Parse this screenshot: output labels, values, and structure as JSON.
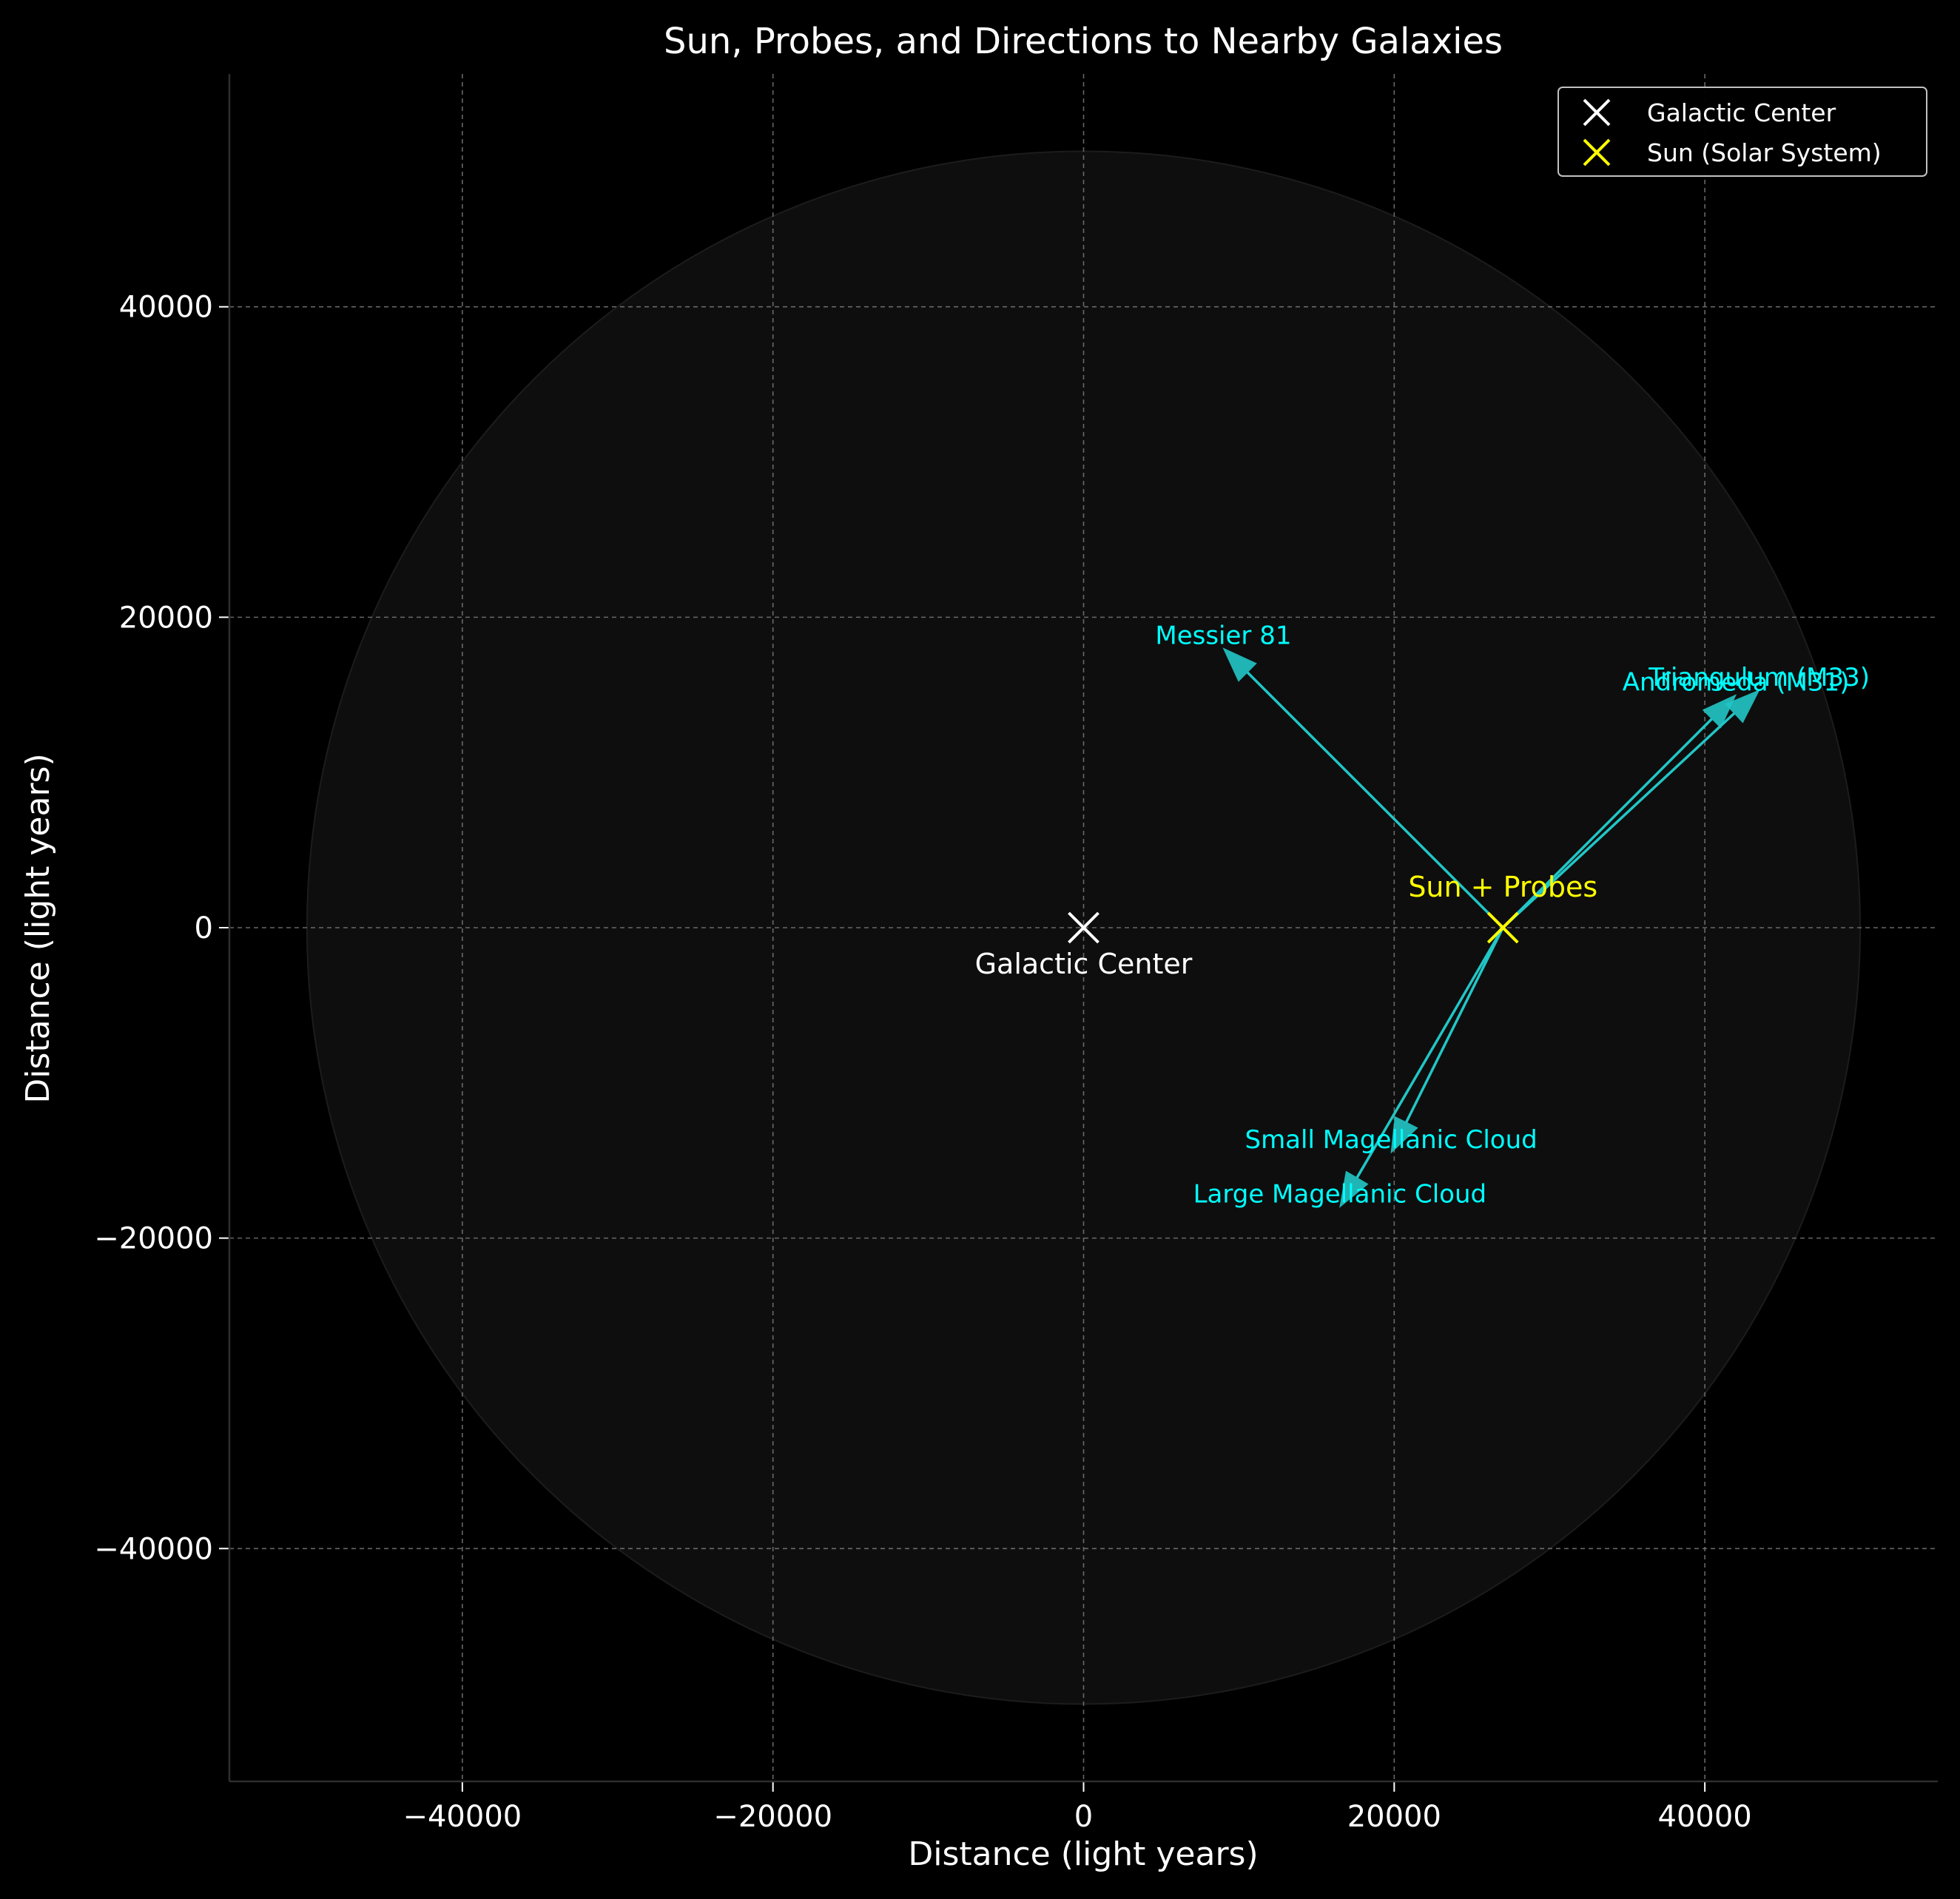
{
  "chart_data": {
    "type": "scatter",
    "title": "Sun, Probes, and Directions to Nearby Galaxies",
    "xlabel": "Distance (light years)",
    "ylabel": "Distance (light years)",
    "xlim": [
      -55000,
      55000
    ],
    "ylim": [
      -55000,
      55000
    ],
    "xticks": [
      -40000,
      -20000,
      0,
      20000,
      40000
    ],
    "yticks": [
      -40000,
      -20000,
      0,
      20000,
      40000
    ],
    "grid": true,
    "legend_position": "top-right",
    "galaxy_disk": {
      "center": [
        0,
        0
      ],
      "radius": 50000
    },
    "points": [
      {
        "name": "Galactic Center",
        "x": 0,
        "y": 0,
        "marker": "x",
        "color": "#ffffff",
        "label": "Galactic Center"
      },
      {
        "name": "Sun (Solar System)",
        "x": 27000,
        "y": 0,
        "marker": "x",
        "color": "#ffff00",
        "label": "Sun + Probes"
      }
    ],
    "arrows": [
      {
        "label": "Messier 81",
        "from": [
          27000,
          0
        ],
        "to": [
          9000,
          18000
        ]
      },
      {
        "label": "Andromeda (M31)",
        "from": [
          27000,
          0
        ],
        "to": [
          42000,
          15000
        ]
      },
      {
        "label": "Triangulum (M33)",
        "from": [
          27000,
          0
        ],
        "to": [
          43500,
          15300
        ]
      },
      {
        "label": "Small Magellanic Cloud",
        "from": [
          27000,
          0
        ],
        "to": [
          19800,
          -14500
        ]
      },
      {
        "label": "Large Magellanic Cloud",
        "from": [
          27000,
          0
        ],
        "to": [
          16500,
          -18000
        ]
      }
    ],
    "legend": [
      {
        "label": "Galactic Center",
        "color": "#ffffff"
      },
      {
        "label": "Sun (Solar System)",
        "color": "#ffff00"
      }
    ],
    "colors": {
      "background": "#000000",
      "disk": "#0e0e0e",
      "grid": "#808080",
      "text": "#ffffff",
      "arrow": "#22c6c6",
      "arrow_label": "#00ffff",
      "sun": "#ffff00"
    }
  }
}
